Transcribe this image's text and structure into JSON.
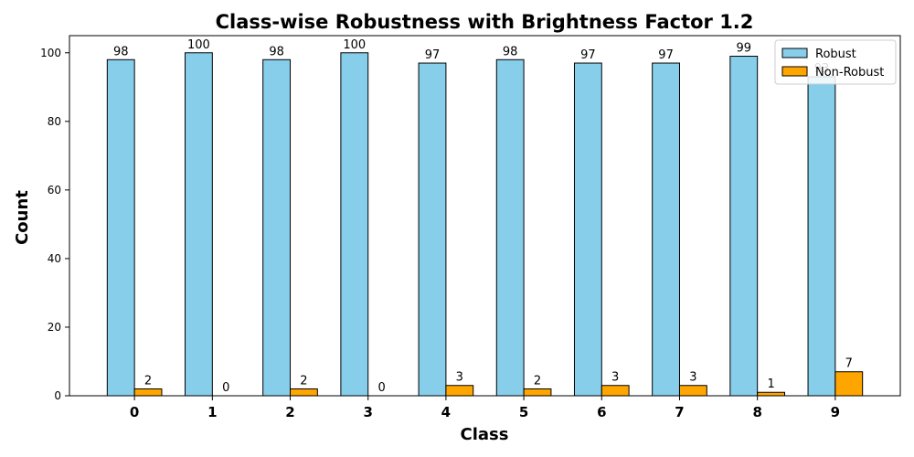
{
  "chart_data": {
    "type": "bar",
    "title": "Class-wise Robustness with Brightness Factor 1.2",
    "xlabel": "Class",
    "ylabel": "Count",
    "categories": [
      "0",
      "1",
      "2",
      "3",
      "4",
      "5",
      "6",
      "7",
      "8",
      "9"
    ],
    "series": [
      {
        "name": "Robust",
        "color": "#87ceeb",
        "values": [
          98,
          100,
          98,
          100,
          97,
          98,
          97,
          97,
          99,
          93
        ]
      },
      {
        "name": "Non-Robust",
        "color": "#ffa500",
        "values": [
          2,
          0,
          2,
          0,
          3,
          2,
          3,
          3,
          1,
          7
        ]
      }
    ],
    "ylim": [
      0,
      105
    ],
    "yticks": [
      0,
      20,
      40,
      60,
      80,
      100
    ],
    "grid": false,
    "legend_position": "top-right"
  }
}
